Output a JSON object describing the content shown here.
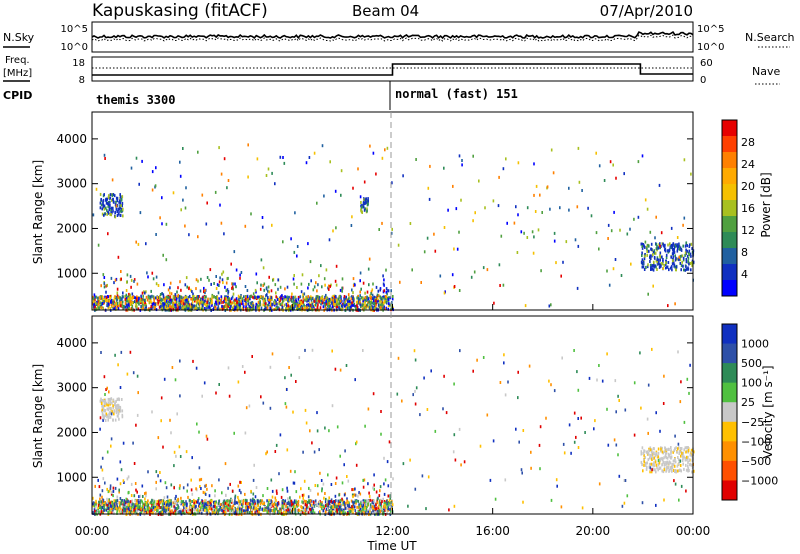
{
  "header": {
    "station": "Kapuskasing (fitACF)",
    "beam": "Beam 04",
    "date": "07/Apr/2010"
  },
  "noise_panel": {
    "left_label": "N.Sky",
    "left_ticks": [
      "10^5",
      "10^0"
    ],
    "right_label": "N.Search",
    "right_ticks": [
      "10^5",
      "10^0"
    ]
  },
  "freq_panel": {
    "left_label_1": "Freq.",
    "left_label_2": "[MHz]",
    "left_ticks": [
      "18",
      "8"
    ],
    "right_label": "Nave",
    "right_ticks": [
      "60",
      "0"
    ],
    "cpid_label": "CPID",
    "modes": [
      {
        "label": "themis 3300",
        "start_hour": 0
      },
      {
        "label": "normal (fast) 151",
        "start_hour": 12
      }
    ]
  },
  "chart_data": [
    {
      "type": "heatmap",
      "title": "",
      "xlabel": "",
      "ylabel": "Slant Range [km]",
      "xlim_hours": [
        0,
        24
      ],
      "ylim": [
        180,
        4600
      ],
      "yticks": [
        1000,
        2000,
        3000,
        4000
      ],
      "colorbar": {
        "label": "Power [dB]",
        "ticks": [
          "28",
          "24",
          "20",
          "16",
          "12",
          "8",
          "4"
        ],
        "colors": [
          "#e60000",
          "#ff4000",
          "#ff8000",
          "#ffaa00",
          "#f5c000",
          "#a8c020",
          "#50a040",
          "#2e8b57",
          "#2060a0",
          "#1030c0",
          "#0000ff"
        ]
      },
      "features": [
        {
          "hours": [
            0,
            12
          ],
          "range_km": [
            200,
            500
          ],
          "description": "near range band"
        },
        {
          "hours": [
            0.3,
            1.2
          ],
          "range_km": [
            2300,
            2800
          ]
        },
        {
          "hours": [
            10.7,
            11.0
          ],
          "range_km": [
            2400,
            2700
          ]
        },
        {
          "hours": [
            21.9,
            24
          ],
          "range_km": [
            1100,
            1700
          ]
        }
      ]
    },
    {
      "type": "heatmap",
      "title": "",
      "xlabel": "Time UT",
      "ylabel": "Slant Range [km]",
      "xlim_hours": [
        0,
        24
      ],
      "ylim": [
        180,
        4600
      ],
      "yticks": [
        1000,
        2000,
        3000,
        4000
      ],
      "xticks": [
        "00:00",
        "04:00",
        "08:00",
        "12:00",
        "16:00",
        "20:00",
        "00:00"
      ],
      "colorbar": {
        "label": "Velocity [m s⁻¹]",
        "ticks": [
          "1000",
          "500",
          "100",
          "25",
          "−25",
          "−100",
          "−500",
          "−1000"
        ],
        "colors": [
          "#1030c0",
          "#2e50a8",
          "#2e8b57",
          "#50c040",
          "#c8c8c8",
          "#ffc000",
          "#ff9000",
          "#ff5000",
          "#e00000"
        ]
      },
      "features": [
        {
          "hours": [
            0,
            12
          ],
          "range_km": [
            200,
            500
          ],
          "description": "near range band"
        },
        {
          "hours": [
            0.3,
            1.2
          ],
          "range_km": [
            2300,
            2800
          ]
        },
        {
          "hours": [
            21.9,
            24
          ],
          "range_km": [
            1150,
            1700
          ]
        }
      ]
    }
  ]
}
